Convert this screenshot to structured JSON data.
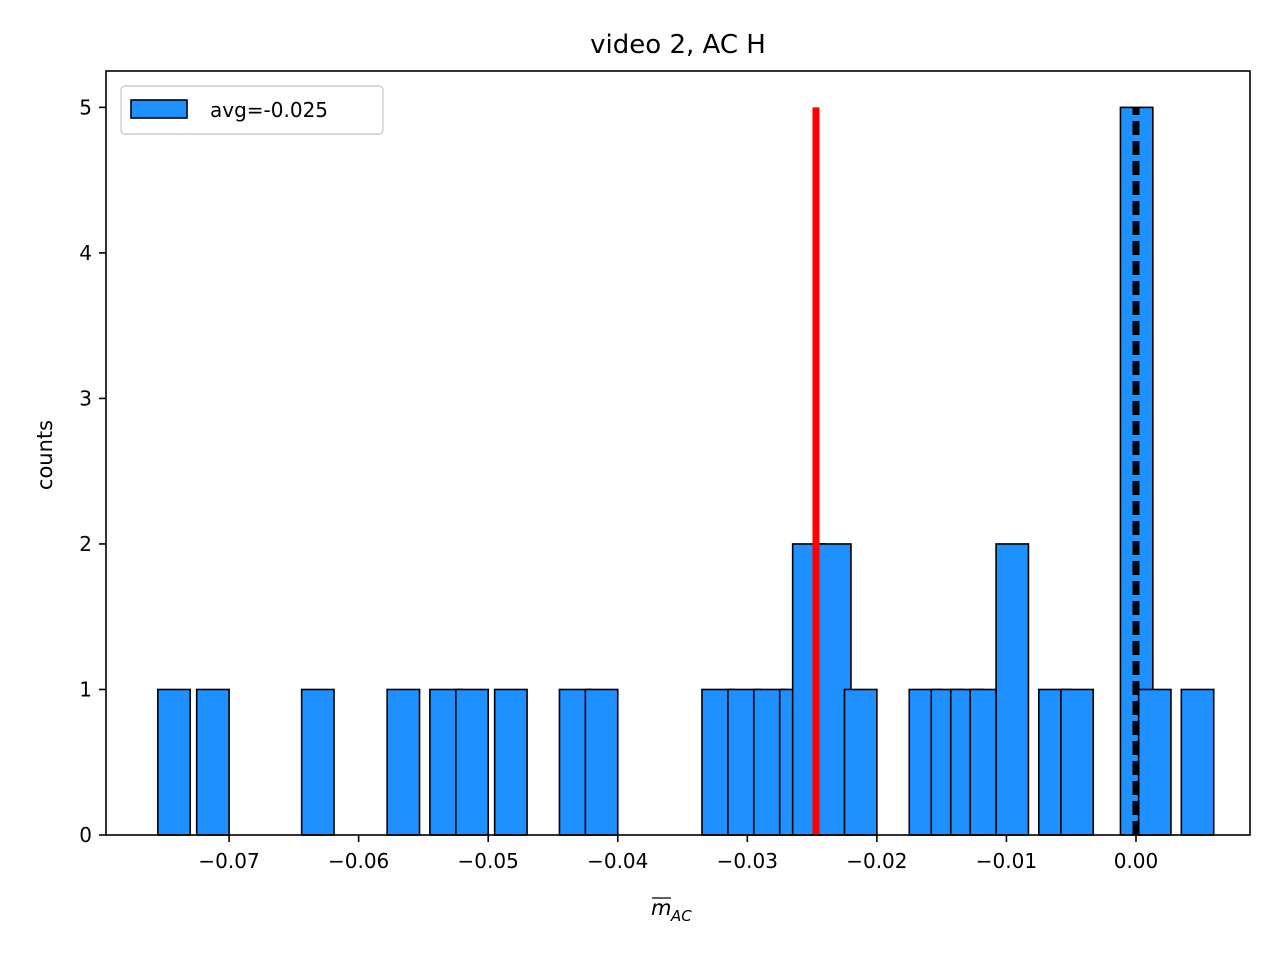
{
  "chart_data": {
    "type": "bar",
    "title": "video 2, AC H",
    "ylabel": "counts",
    "xlabel": {
      "base": "m",
      "subscript": "AC"
    },
    "xlim": [
      -0.0795,
      0.0088
    ],
    "ylim": [
      0,
      5.25
    ],
    "x_ticks": [
      -0.07,
      -0.06,
      -0.05,
      -0.04,
      -0.03,
      -0.02,
      -0.01,
      0.0
    ],
    "x_tick_labels": [
      "−0.07",
      "−0.06",
      "−0.05",
      "−0.04",
      "−0.03",
      "−0.02",
      "−0.01",
      "0.00"
    ],
    "y_ticks": [
      0,
      1,
      2,
      3,
      4,
      5
    ],
    "y_tick_labels": [
      "0",
      "1",
      "2",
      "3",
      "4",
      "5"
    ],
    "grid": false,
    "legend": {
      "placement": "upper-left",
      "entries": [
        {
          "label": "avg=-0.025"
        }
      ]
    },
    "bin_width": 0.0025,
    "bins": [
      {
        "left": -0.0755,
        "count": 1
      },
      {
        "left": -0.0725,
        "count": 1
      },
      {
        "left": -0.0644,
        "count": 1
      },
      {
        "left": -0.0578,
        "count": 1
      },
      {
        "left": -0.0545,
        "count": 1
      },
      {
        "left": -0.0525,
        "count": 1
      },
      {
        "left": -0.0495,
        "count": 1
      },
      {
        "left": -0.0445,
        "count": 1
      },
      {
        "left": -0.0425,
        "count": 1
      },
      {
        "left": -0.0335,
        "count": 1
      },
      {
        "left": -0.0315,
        "count": 1
      },
      {
        "left": -0.0295,
        "count": 1
      },
      {
        "left": -0.0275,
        "count": 1
      },
      {
        "left": -0.0265,
        "count": 2
      },
      {
        "left": -0.0245,
        "count": 2
      },
      {
        "left": -0.0225,
        "count": 1
      },
      {
        "left": -0.0175,
        "count": 1
      },
      {
        "left": -0.0158,
        "count": 1
      },
      {
        "left": -0.0143,
        "count": 1
      },
      {
        "left": -0.0128,
        "count": 1
      },
      {
        "left": -0.0108,
        "count": 2
      },
      {
        "left": -0.0075,
        "count": 1
      },
      {
        "left": -0.0058,
        "count": 1
      },
      {
        "left": -0.0012,
        "count": 5
      },
      {
        "left": 0.0002,
        "count": 1
      },
      {
        "left": 0.0035,
        "count": 1
      }
    ],
    "average_line": {
      "x": -0.0247,
      "y_max": 5
    },
    "zero_line": {
      "x": 0.0,
      "y_max": 5,
      "style": "dashed"
    },
    "colors": {
      "bar_fill": "#1e90ff",
      "bar_edge": "#000000",
      "average_line": "#ff0000",
      "zero_line": "#000000"
    }
  }
}
